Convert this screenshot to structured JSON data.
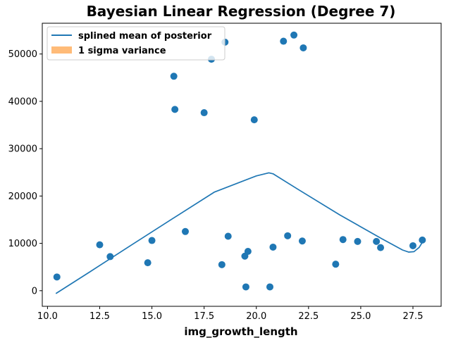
{
  "chart_data": {
    "type": "scatter",
    "title": "Bayesian Linear Regression (Degree 7)",
    "xlabel": "img_growth_length",
    "ylabel": "",
    "xlim": [
      9.75,
      28.85
    ],
    "ylim": [
      -3300,
      56500
    ],
    "xticks": [
      10.0,
      12.5,
      15.0,
      17.5,
      20.0,
      22.5,
      25.0,
      27.5
    ],
    "xtick_labels": [
      "10.0",
      "12.5",
      "15.0",
      "17.5",
      "20.0",
      "22.5",
      "25.0",
      "27.5"
    ],
    "yticks": [
      0,
      10000,
      20000,
      30000,
      40000,
      50000
    ],
    "ytick_labels": [
      "0",
      "10000",
      "20000",
      "30000",
      "40000",
      "50000"
    ],
    "grid": false,
    "legend_position": "top-left",
    "legend": [
      {
        "label": "splined mean of posterior",
        "kind": "line"
      },
      {
        "label": "1 sigma variance",
        "kind": "patch"
      }
    ],
    "colors": {
      "points": "#1f77b4",
      "line": "#1f77b4",
      "variance": "#ffbb78"
    },
    "series": [
      {
        "name": "splined mean of posterior",
        "kind": "line",
        "x": [
          10.4,
          12.0,
          14.0,
          16.0,
          18.0,
          20.0,
          20.6,
          20.8,
          22.0,
          24.0,
          26.0,
          27.0,
          27.3,
          27.55,
          27.8,
          28.0
        ],
        "y": [
          -600,
          3900,
          9600,
          15250,
          20850,
          24250,
          24900,
          24700,
          21400,
          16000,
          11000,
          8600,
          8150,
          8250,
          9150,
          10600
        ]
      },
      {
        "name": "",
        "kind": "scatter",
        "x": [
          10.45,
          12.5,
          13.0,
          14.8,
          15.0,
          16.05,
          16.1,
          16.6,
          17.5,
          17.85,
          18.35,
          18.5,
          18.65,
          19.45,
          19.5,
          19.6,
          19.9,
          20.65,
          20.8,
          21.3,
          21.5,
          21.8,
          22.2,
          22.25,
          23.8,
          24.15,
          24.85,
          25.75,
          25.95,
          27.5,
          27.95
        ],
        "y": [
          2900,
          9700,
          7200,
          5900,
          10600,
          45300,
          38300,
          12500,
          37600,
          48900,
          5500,
          52500,
          11500,
          7300,
          800,
          8300,
          36100,
          800,
          9200,
          52700,
          11600,
          54000,
          10500,
          51300,
          5600,
          10800,
          10400,
          10400,
          9100,
          9500,
          10700
        ]
      }
    ]
  }
}
